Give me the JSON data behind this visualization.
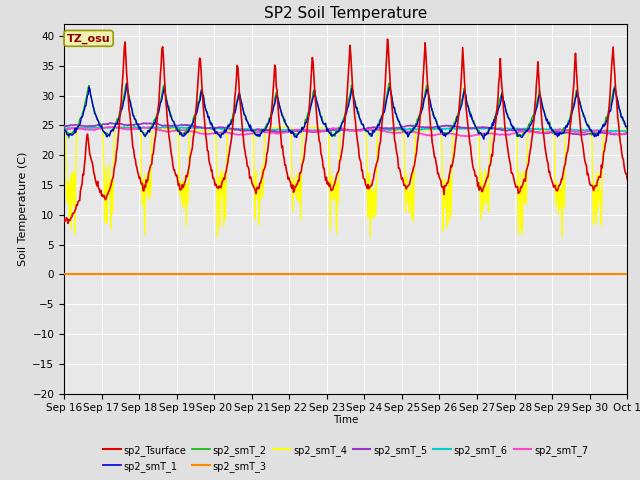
{
  "title": "SP2 Soil Temperature",
  "ylabel": "Soil Temperature (C)",
  "xlabel": "Time",
  "tz_label": "TZ_osu",
  "ylim": [
    -20,
    42
  ],
  "yticks": [
    -20,
    -15,
    -10,
    -5,
    0,
    5,
    10,
    15,
    20,
    25,
    30,
    35,
    40
  ],
  "fig_bg": "#e0e0e0",
  "plot_bg": "#e8e8e8",
  "series": {
    "sp2_Tsurface": {
      "color": "#dd0000",
      "lw": 1.2
    },
    "sp2_smT_1": {
      "color": "#0000cc",
      "lw": 1.0
    },
    "sp2_smT_2": {
      "color": "#00bb00",
      "lw": 1.0
    },
    "sp2_smT_3": {
      "color": "#ff8800",
      "lw": 1.5
    },
    "sp2_smT_4": {
      "color": "#ffff00",
      "lw": 1.0
    },
    "sp2_smT_5": {
      "color": "#9933cc",
      "lw": 1.2
    },
    "sp2_smT_6": {
      "color": "#00cccc",
      "lw": 1.2
    },
    "sp2_smT_7": {
      "color": "#ff44cc",
      "lw": 1.2
    }
  },
  "num_days": 15,
  "pts_per_day": 48
}
